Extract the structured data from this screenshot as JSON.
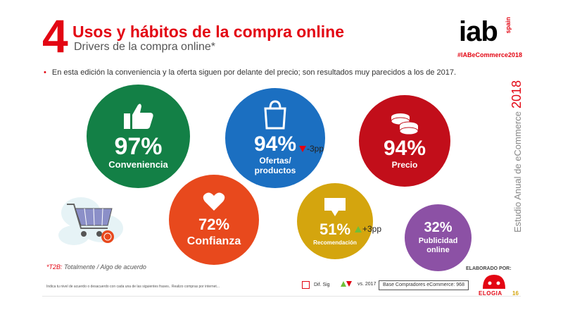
{
  "header": {
    "number": "4",
    "title": "Usos y hábitos de la compra online",
    "subtitle": "Drivers de la compra online*"
  },
  "logo": {
    "text": "iab",
    "suffix": "spain",
    "hashtag": "#IABeCommerce2018"
  },
  "bullet": "En esta edición la conveniencia y la oferta siguen por delante del precio; son resultados muy parecidos a los de 2017.",
  "side_label": {
    "text": "Estudio Anual de eCommerce",
    "year": "2018"
  },
  "drivers": {
    "conveniencia": {
      "value": "97%",
      "label": "Conveniencia",
      "color": "#138046",
      "icon": "thumbs-up-icon"
    },
    "ofertas": {
      "value": "94%",
      "label_line1": "Ofertas/",
      "label_line2": "productos",
      "delta": "-3pp",
      "color": "#1b6fc1",
      "icon": "shopping-bag-icon"
    },
    "precio": {
      "value": "94%",
      "label": "Precio",
      "color": "#c20e1a",
      "icon": "coins-icon"
    },
    "confianza": {
      "value": "72%",
      "label": "Confianza",
      "color": "#e8491d",
      "icon": "heart-icon"
    },
    "recomendacion": {
      "value": "51%",
      "label": "Recomendación",
      "delta": "+3pp",
      "color": "#d4a50e",
      "icon": "speech-bubble-icon"
    },
    "publicidad": {
      "value": "32%",
      "label_line1": "Publicidad",
      "label_line2": "online",
      "color": "#8c51a5"
    }
  },
  "footer": {
    "t2b_prefix": "*T2B:",
    "t2b_rest": " Totalmente / Algo de acuerdo",
    "note": "Indica tu nivel de acuerdo o desacuerdo con cada una de las siguientes frases.. Realizo compras por internet...",
    "dif_sig": "Dif. Sig",
    "vs": "vs. 2017",
    "base": "Base Compradores eCommerce: 968",
    "elaborado": "ELABORADO POR:",
    "elogia": "ELOGIA",
    "page": "16"
  }
}
